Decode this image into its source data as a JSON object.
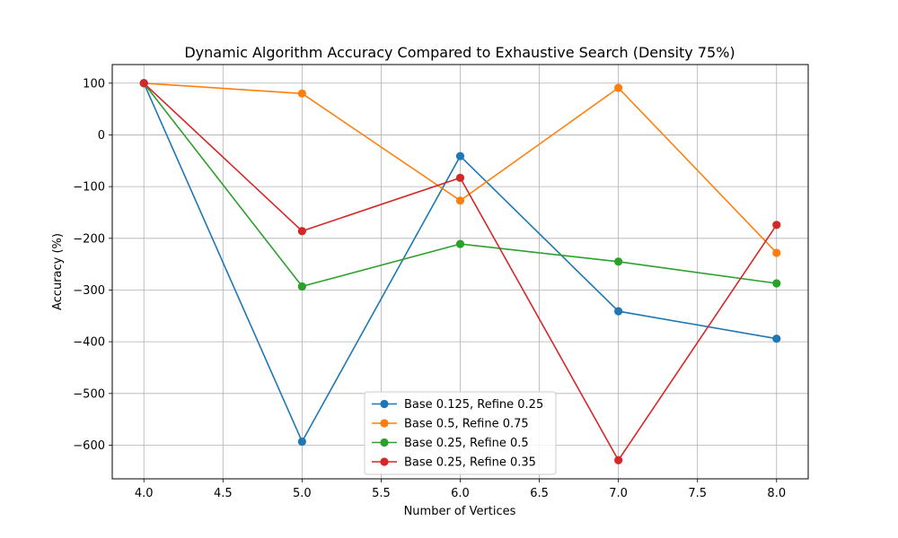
{
  "chart_data": {
    "type": "line",
    "title": "Dynamic Algorithm Accuracy Compared to Exhaustive Search (Density 75%)",
    "xlabel": "Number of Vertices",
    "ylabel": "Accuracy (%)",
    "xlim": [
      3.8,
      8.2
    ],
    "ylim": [
      -665,
      136
    ],
    "x_ticks": [
      4.0,
      4.5,
      5.0,
      5.5,
      6.0,
      6.5,
      7.0,
      7.5,
      8.0
    ],
    "x_tick_labels": [
      "4.0",
      "4.5",
      "5.0",
      "5.5",
      "6.0",
      "6.5",
      "7.0",
      "7.5",
      "8.0"
    ],
    "y_ticks": [
      100,
      0,
      -100,
      -200,
      -300,
      -400,
      -500,
      -600
    ],
    "y_tick_labels": [
      "100",
      "0",
      "−100",
      "−200",
      "−300",
      "−400",
      "−500",
      "−600"
    ],
    "grid": true,
    "legend_position": "lower-center",
    "x": [
      4,
      5,
      6,
      7,
      8
    ],
    "series": [
      {
        "name": "Base 0.125, Refine 0.25",
        "color": "#1f77b4",
        "values": [
          100,
          -593,
          -41,
          -341,
          -394
        ]
      },
      {
        "name": "Base 0.5, Refine 0.75",
        "color": "#ff7f0e",
        "values": [
          100,
          80,
          -127,
          91,
          -228
        ]
      },
      {
        "name": "Base 0.25, Refine 0.5",
        "color": "#2ca02c",
        "values": [
          100,
          -293,
          -211,
          -245,
          -287
        ]
      },
      {
        "name": "Base 0.25, Refine 0.35",
        "color": "#d62728",
        "values": [
          100,
          -186,
          -83,
          -629,
          -174
        ]
      }
    ]
  }
}
